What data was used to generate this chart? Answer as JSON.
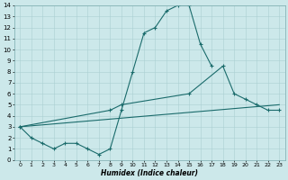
{
  "xlabel": "Humidex (Indice chaleur)",
  "xlim": [
    -0.5,
    23.5
  ],
  "ylim": [
    0,
    14
  ],
  "xticks": [
    0,
    1,
    2,
    3,
    4,
    5,
    6,
    7,
    8,
    9,
    10,
    11,
    12,
    13,
    14,
    15,
    16,
    17,
    18,
    19,
    20,
    21,
    22,
    23
  ],
  "yticks": [
    0,
    1,
    2,
    3,
    4,
    5,
    6,
    7,
    8,
    9,
    10,
    11,
    12,
    13,
    14
  ],
  "bg_color": "#cce8ea",
  "line_color": "#1a6b6b",
  "grid_color": "#aacfd2",
  "line1_x": [
    0,
    1,
    2,
    3,
    4,
    5,
    6,
    7,
    8,
    9,
    10,
    11,
    12,
    13,
    14,
    15,
    16,
    17
  ],
  "line1_y": [
    3.0,
    2.0,
    1.5,
    1.0,
    1.5,
    1.5,
    1.0,
    0.5,
    1.0,
    4.5,
    8.0,
    11.5,
    12.0,
    13.5,
    14.0,
    14.0,
    10.5,
    8.5
  ],
  "line2_x": [
    0,
    8,
    9,
    15,
    18,
    19,
    20,
    21,
    22,
    23
  ],
  "line2_y": [
    3.0,
    4.5,
    5.0,
    6.0,
    8.5,
    6.0,
    5.5,
    5.0,
    4.5,
    4.5
  ],
  "line3_x": [
    0,
    23
  ],
  "line3_y": [
    3.0,
    5.0
  ]
}
